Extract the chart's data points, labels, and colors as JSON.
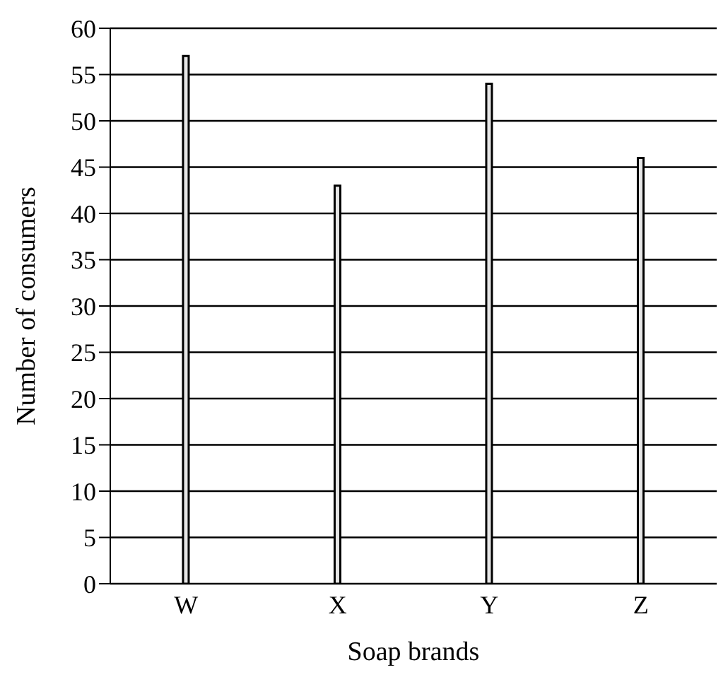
{
  "chart_data": {
    "type": "bar",
    "xlabel": "Soap brands",
    "ylabel": "Number of consumers",
    "categories": [
      "W",
      "X",
      "Y",
      "Z"
    ],
    "values": [
      57,
      43,
      54,
      46
    ],
    "color": "#e6e6e6",
    "ylim": [
      0,
      60
    ],
    "yticks": [
      0,
      5,
      10,
      15,
      20,
      25,
      30,
      35,
      40,
      45,
      50,
      55,
      60
    ],
    "grid": "y"
  }
}
